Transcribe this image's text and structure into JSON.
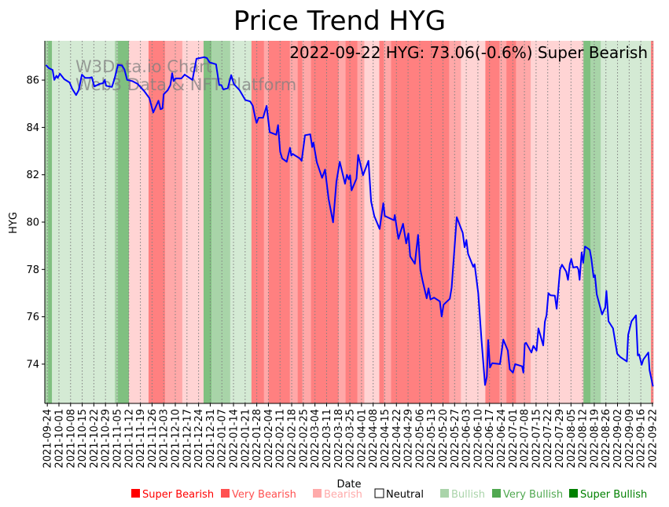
{
  "chart_data": {
    "type": "line",
    "title": "Price Trend HYG",
    "annotation": "2022-09-22 HYG: 73.06(-0.6%) Super Bearish",
    "watermark": [
      "W3Data.io Chart",
      "Web3 Data & NFT Platform"
    ],
    "xlabel": "Date",
    "ylabel": "HYG",
    "x_unit": "days since 2021-09-24",
    "xlim": [
      -1.5,
      364.5
    ],
    "ylim": [
      72.34,
      87.66
    ],
    "yticks": [
      74,
      76,
      78,
      80,
      82,
      84,
      86
    ],
    "grid": "vertical dotted at x ticks",
    "line_color": "#0000ff",
    "xticks": [
      {
        "x": 0,
        "label": "2021-09-24"
      },
      {
        "x": 7,
        "label": "2021-10-01"
      },
      {
        "x": 14,
        "label": "2021-10-08"
      },
      {
        "x": 21,
        "label": "2021-10-15"
      },
      {
        "x": 28,
        "label": "2021-10-22"
      },
      {
        "x": 35,
        "label": "2021-10-29"
      },
      {
        "x": 42,
        "label": "2021-11-05"
      },
      {
        "x": 49,
        "label": "2021-11-12"
      },
      {
        "x": 56,
        "label": "2021-11-19"
      },
      {
        "x": 63,
        "label": "2021-11-26"
      },
      {
        "x": 70,
        "label": "2021-12-03"
      },
      {
        "x": 77,
        "label": "2021-12-10"
      },
      {
        "x": 84,
        "label": "2021-12-17"
      },
      {
        "x": 91,
        "label": "2021-12-24"
      },
      {
        "x": 98,
        "label": "2021-12-31"
      },
      {
        "x": 105,
        "label": "2022-01-07"
      },
      {
        "x": 112,
        "label": "2022-01-14"
      },
      {
        "x": 119,
        "label": "2022-01-21"
      },
      {
        "x": 126,
        "label": "2022-01-28"
      },
      {
        "x": 133,
        "label": "2022-02-04"
      },
      {
        "x": 140,
        "label": "2022-02-11"
      },
      {
        "x": 147,
        "label": "2022-02-18"
      },
      {
        "x": 154,
        "label": "2022-02-25"
      },
      {
        "x": 161,
        "label": "2022-03-04"
      },
      {
        "x": 168,
        "label": "2022-03-11"
      },
      {
        "x": 175,
        "label": "2022-03-18"
      },
      {
        "x": 182,
        "label": "2022-03-25"
      },
      {
        "x": 189,
        "label": "2022-04-01"
      },
      {
        "x": 196,
        "label": "2022-04-08"
      },
      {
        "x": 203,
        "label": "2022-04-15"
      },
      {
        "x": 210,
        "label": "2022-04-22"
      },
      {
        "x": 217,
        "label": "2022-04-29"
      },
      {
        "x": 224,
        "label": "2022-05-06"
      },
      {
        "x": 231,
        "label": "2022-05-13"
      },
      {
        "x": 238,
        "label": "2022-05-20"
      },
      {
        "x": 245,
        "label": "2022-05-27"
      },
      {
        "x": 252,
        "label": "2022-06-03"
      },
      {
        "x": 259,
        "label": "2022-06-10"
      },
      {
        "x": 266,
        "label": "2022-06-17"
      },
      {
        "x": 273,
        "label": "2022-06-24"
      },
      {
        "x": 280,
        "label": "2022-07-01"
      },
      {
        "x": 287,
        "label": "2022-07-08"
      },
      {
        "x": 294,
        "label": "2022-07-15"
      },
      {
        "x": 301,
        "label": "2022-07-22"
      },
      {
        "x": 308,
        "label": "2022-07-29"
      },
      {
        "x": 315,
        "label": "2022-08-05"
      },
      {
        "x": 322,
        "label": "2022-08-12"
      },
      {
        "x": 329,
        "label": "2022-08-19"
      },
      {
        "x": 336,
        "label": "2022-08-26"
      },
      {
        "x": 343,
        "label": "2022-09-02"
      },
      {
        "x": 350,
        "label": "2022-09-09"
      },
      {
        "x": 357,
        "label": "2022-09-16"
      },
      {
        "x": 364,
        "label": "2022-09-22"
      }
    ],
    "band_colors": {
      "super_bearish": "#ff8080",
      "very_bearish": "#ffa8a8",
      "bearish": "#ffd4d4",
      "bullish": "#d4ead4",
      "very_bullish": "#a8d4a8",
      "super_bullish": "#80c080"
    },
    "bands": [
      [
        -1.5,
        0.5,
        "very_bullish"
      ],
      [
        0.5,
        2.8,
        "super_bullish"
      ],
      [
        2.8,
        40.6,
        "bullish"
      ],
      [
        40.6,
        42.5,
        "very_bullish"
      ],
      [
        42.5,
        49.1,
        "super_bullish"
      ],
      [
        49.1,
        60.9,
        "bearish"
      ],
      [
        60.9,
        70.8,
        "super_bearish"
      ],
      [
        70.8,
        81.2,
        "very_bearish"
      ],
      [
        81.2,
        94.0,
        "bearish"
      ],
      [
        94.0,
        98.7,
        "super_bullish"
      ],
      [
        98.7,
        110.0,
        "very_bullish"
      ],
      [
        110.0,
        122.8,
        "bullish"
      ],
      [
        122.8,
        130.3,
        "super_bearish"
      ],
      [
        130.3,
        133.1,
        "very_bearish"
      ],
      [
        133.1,
        145.9,
        "super_bearish"
      ],
      [
        145.9,
        150.6,
        "very_bearish"
      ],
      [
        150.6,
        153.4,
        "super_bearish"
      ],
      [
        153.4,
        158.6,
        "very_bearish"
      ],
      [
        158.6,
        175.2,
        "super_bearish"
      ],
      [
        175.2,
        179.4,
        "very_bearish"
      ],
      [
        179.4,
        186.5,
        "super_bearish"
      ],
      [
        186.5,
        190.7,
        "very_bearish"
      ],
      [
        190.7,
        199.7,
        "bearish"
      ],
      [
        199.7,
        202.5,
        "super_bearish"
      ],
      [
        202.5,
        206.8,
        "very_bearish"
      ],
      [
        206.8,
        241.7,
        "super_bearish"
      ],
      [
        241.7,
        248.8,
        "very_bearish"
      ],
      [
        248.8,
        263.5,
        "bearish"
      ],
      [
        263.5,
        272.0,
        "super_bearish"
      ],
      [
        272.0,
        276.2,
        "very_bearish"
      ],
      [
        276.2,
        281.9,
        "super_bearish"
      ],
      [
        281.9,
        290.8,
        "very_bearish"
      ],
      [
        290.8,
        322.5,
        "bearish"
      ],
      [
        322.5,
        326.7,
        "super_bullish"
      ],
      [
        326.7,
        332.9,
        "very_bullish"
      ],
      [
        332.9,
        363.1,
        "bullish"
      ],
      [
        363.1,
        364.5,
        "super_bearish"
      ]
    ],
    "series": [
      {
        "name": "HYG",
        "points": [
          [
            -0.8,
            86.64
          ],
          [
            0.8,
            86.51
          ],
          [
            3.2,
            86.43
          ],
          [
            4.2,
            86.01
          ],
          [
            5.5,
            86.18
          ],
          [
            6.3,
            86.09
          ],
          [
            7.6,
            86.27
          ],
          [
            10.2,
            86.04
          ],
          [
            13.4,
            85.9
          ],
          [
            15.0,
            85.63
          ],
          [
            17.3,
            85.37
          ],
          [
            18.9,
            85.57
          ],
          [
            20.8,
            86.23
          ],
          [
            22.8,
            86.09
          ],
          [
            25.2,
            86.09
          ],
          [
            26.8,
            86.12
          ],
          [
            28.3,
            85.73
          ],
          [
            31.5,
            85.84
          ],
          [
            33.5,
            85.87
          ],
          [
            34.6,
            86.01
          ],
          [
            35.4,
            85.76
          ],
          [
            38.9,
            85.71
          ],
          [
            40.5,
            86.07
          ],
          [
            42.5,
            86.64
          ],
          [
            44.9,
            86.62
          ],
          [
            46.4,
            86.45
          ],
          [
            48.0,
            86.01
          ],
          [
            51.1,
            85.96
          ],
          [
            54.3,
            85.84
          ],
          [
            58.2,
            85.54
          ],
          [
            61.4,
            85.24
          ],
          [
            63.7,
            84.63
          ],
          [
            66.9,
            85.13
          ],
          [
            68.1,
            84.77
          ],
          [
            69.3,
            84.8
          ],
          [
            70.0,
            85.4
          ],
          [
            72.4,
            85.57
          ],
          [
            74.0,
            85.79
          ],
          [
            75.1,
            86.29
          ],
          [
            76.0,
            85.96
          ],
          [
            77.1,
            86.07
          ],
          [
            80.7,
            86.07
          ],
          [
            82.6,
            86.23
          ],
          [
            87.3,
            86.01
          ],
          [
            89.7,
            86.9
          ],
          [
            94.4,
            86.97
          ],
          [
            96.0,
            86.93
          ],
          [
            97.6,
            86.75
          ],
          [
            101.5,
            86.67
          ],
          [
            103.4,
            85.79
          ],
          [
            104.7,
            85.79
          ],
          [
            105.9,
            85.6
          ],
          [
            108.6,
            85.66
          ],
          [
            110.6,
            86.21
          ],
          [
            112.2,
            85.84
          ],
          [
            115.7,
            85.57
          ],
          [
            119.1,
            85.16
          ],
          [
            122.0,
            85.1
          ],
          [
            123.6,
            84.91
          ],
          [
            125.1,
            84.41
          ],
          [
            125.9,
            84.19
          ],
          [
            127.1,
            84.41
          ],
          [
            129.8,
            84.41
          ],
          [
            131.9,
            84.91
          ],
          [
            133.8,
            83.8
          ],
          [
            137.7,
            83.69
          ],
          [
            138.8,
            84.1
          ],
          [
            140.1,
            82.97
          ],
          [
            141.3,
            82.69
          ],
          [
            144.0,
            82.55
          ],
          [
            146.0,
            83.14
          ],
          [
            146.8,
            82.81
          ],
          [
            147.6,
            82.88
          ],
          [
            151.9,
            82.69
          ],
          [
            153.0,
            82.59
          ],
          [
            155.0,
            83.67
          ],
          [
            158.2,
            83.71
          ],
          [
            159.3,
            83.17
          ],
          [
            160.1,
            83.36
          ],
          [
            162.1,
            82.53
          ],
          [
            165.3,
            81.87
          ],
          [
            167.1,
            82.22
          ],
          [
            169.2,
            80.98
          ],
          [
            171.9,
            79.99
          ],
          [
            173.9,
            81.7
          ],
          [
            175.9,
            82.55
          ],
          [
            179.1,
            81.62
          ],
          [
            180.2,
            82.0
          ],
          [
            181.3,
            81.81
          ],
          [
            182.1,
            81.98
          ],
          [
            183.0,
            81.34
          ],
          [
            186.0,
            81.84
          ],
          [
            187.0,
            82.84
          ],
          [
            189.9,
            81.98
          ],
          [
            193.2,
            82.59
          ],
          [
            194.8,
            80.87
          ],
          [
            196.7,
            80.26
          ],
          [
            199.9,
            79.71
          ],
          [
            202.1,
            80.8
          ],
          [
            203.0,
            80.26
          ],
          [
            208.5,
            80.08
          ],
          [
            209.0,
            80.3
          ],
          [
            211.2,
            79.29
          ],
          [
            214.0,
            79.93
          ],
          [
            215.9,
            79.1
          ],
          [
            217.2,
            79.52
          ],
          [
            218.3,
            78.55
          ],
          [
            221.1,
            78.24
          ],
          [
            223.0,
            79.46
          ],
          [
            224.4,
            78.0
          ],
          [
            225.8,
            77.5
          ],
          [
            228.2,
            76.78
          ],
          [
            229.3,
            77.2
          ],
          [
            230.5,
            76.73
          ],
          [
            232.6,
            76.81
          ],
          [
            236.1,
            76.65
          ],
          [
            237.2,
            76.01
          ],
          [
            238.4,
            76.51
          ],
          [
            242.1,
            76.76
          ],
          [
            243.2,
            77.23
          ],
          [
            246.3,
            80.21
          ],
          [
            249.9,
            79.55
          ],
          [
            251.0,
            78.94
          ],
          [
            252.1,
            79.24
          ],
          [
            253.1,
            78.66
          ],
          [
            256.2,
            78.11
          ],
          [
            257.0,
            78.22
          ],
          [
            259.2,
            77.01
          ],
          [
            261.2,
            75.02
          ],
          [
            263.3,
            73.12
          ],
          [
            264.4,
            73.47
          ],
          [
            265.2,
            75.02
          ],
          [
            266.3,
            73.86
          ],
          [
            267.6,
            74.04
          ],
          [
            272.3,
            74.0
          ],
          [
            274.3,
            75.04
          ],
          [
            277.0,
            74.57
          ],
          [
            278.2,
            73.78
          ],
          [
            280.1,
            73.64
          ],
          [
            281.4,
            74.0
          ],
          [
            285.6,
            73.91
          ],
          [
            286.4,
            73.64
          ],
          [
            287.2,
            74.85
          ],
          [
            288.0,
            74.9
          ],
          [
            291.2,
            74.49
          ],
          [
            292.4,
            74.77
          ],
          [
            294.3,
            74.57
          ],
          [
            295.4,
            75.51
          ],
          [
            298.3,
            74.79
          ],
          [
            299.3,
            75.79
          ],
          [
            300.3,
            76.06
          ],
          [
            301.4,
            77.0
          ],
          [
            302.6,
            76.91
          ],
          [
            305.3,
            76.89
          ],
          [
            306.4,
            76.34
          ],
          [
            308.4,
            78.0
          ],
          [
            309.6,
            78.2
          ],
          [
            312.1,
            77.91
          ],
          [
            313.2,
            77.56
          ],
          [
            314.3,
            78.22
          ],
          [
            315.2,
            78.44
          ],
          [
            316.3,
            78.08
          ],
          [
            318.7,
            78.11
          ],
          [
            319.5,
            78.0
          ],
          [
            320.2,
            77.56
          ],
          [
            321.4,
            78.72
          ],
          [
            322.3,
            78.28
          ],
          [
            323.4,
            78.97
          ],
          [
            326.3,
            78.83
          ],
          [
            327.3,
            78.44
          ],
          [
            328.6,
            77.67
          ],
          [
            329.4,
            77.76
          ],
          [
            330.5,
            76.95
          ],
          [
            333.7,
            76.1
          ],
          [
            335.6,
            76.4
          ],
          [
            336.3,
            77.09
          ],
          [
            337.6,
            75.81
          ],
          [
            340.3,
            75.51
          ],
          [
            342.8,
            74.44
          ],
          [
            344.7,
            74.3
          ],
          [
            348.6,
            74.11
          ],
          [
            349.4,
            75.24
          ],
          [
            351.4,
            75.81
          ],
          [
            354.1,
            76.06
          ],
          [
            355.2,
            74.37
          ],
          [
            356.0,
            74.41
          ],
          [
            357.5,
            73.97
          ],
          [
            358.5,
            74.19
          ],
          [
            361.5,
            74.49
          ],
          [
            362.3,
            73.74
          ],
          [
            364.3,
            73.06
          ]
        ]
      }
    ],
    "legend": {
      "placement": "bottom",
      "items": [
        {
          "label": "Super Bearish",
          "color": "#ff0000"
        },
        {
          "label": "Very Bearish",
          "color": "#ff5050"
        },
        {
          "label": "Bearish",
          "color": "#ffaaaa"
        },
        {
          "label": "Neutral",
          "color": "#ffffff"
        },
        {
          "label": "Bullish",
          "color": "#aad4aa"
        },
        {
          "label": "Very Bullish",
          "color": "#50a850"
        },
        {
          "label": "Super Bullish",
          "color": "#008000"
        }
      ]
    }
  }
}
